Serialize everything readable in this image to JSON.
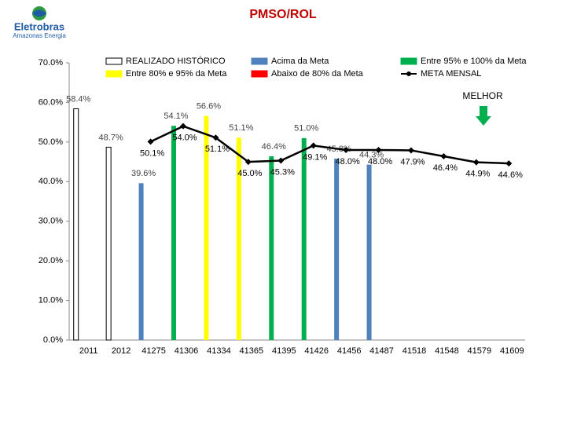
{
  "logo": {
    "name": "Eletrobras",
    "subtitle": "Amazonas Energia"
  },
  "chart_data": {
    "type": "bar",
    "title": "PMSO/ROL",
    "categories": [
      "2011",
      "2012",
      "41275",
      "41306",
      "41334",
      "41365",
      "41395",
      "41426",
      "41456",
      "41487",
      "41518",
      "41548",
      "41579",
      "41609"
    ],
    "ylim": [
      0,
      70
    ],
    "yticks": [
      {
        "value": 0,
        "label": "0.0%"
      },
      {
        "value": 10,
        "label": "10.0%"
      },
      {
        "value": 20,
        "label": "20.0%"
      },
      {
        "value": 30,
        "label": "30.0%"
      },
      {
        "value": 40,
        "label": "40.0%"
      },
      {
        "value": 50,
        "label": "50.0%"
      },
      {
        "value": 60,
        "label": "60.0%"
      },
      {
        "value": 70,
        "label": "70.0%"
      }
    ],
    "annotation": "MELHOR",
    "series": [
      {
        "name": "REALIZADO HISTÓRICO",
        "color": "#ffffff",
        "values": [
          58.4,
          48.7,
          null,
          null,
          null,
          null,
          null,
          null,
          null,
          null,
          null,
          null,
          null,
          null
        ],
        "value_labels": [
          "58.4%",
          "48.7%",
          null,
          null,
          null,
          null,
          null,
          null,
          null,
          null,
          null,
          null,
          null,
          null
        ]
      },
      {
        "name": "Entre 80% e 95% da Meta",
        "color": "#ffff00",
        "values": [
          null,
          null,
          null,
          null,
          56.6,
          51.1,
          null,
          null,
          null,
          null,
          null,
          null,
          null,
          null
        ],
        "value_labels": [
          null,
          null,
          null,
          null,
          "56.6%",
          "51.1%",
          null,
          null,
          null,
          null,
          null,
          null,
          null,
          null
        ]
      },
      {
        "name": "Acima da Meta",
        "color": "#4f81bd",
        "values": [
          null,
          null,
          39.6,
          null,
          null,
          null,
          null,
          null,
          45.8,
          44.3,
          null,
          null,
          null,
          null
        ],
        "value_labels": [
          null,
          null,
          "39.6%",
          null,
          null,
          null,
          null,
          null,
          "45.8%",
          "44.3%",
          null,
          null,
          null,
          null
        ]
      },
      {
        "name": "Abaixo de 80% da Meta",
        "color": "#ff0000",
        "values": [
          null,
          null,
          null,
          null,
          null,
          null,
          null,
          null,
          null,
          null,
          null,
          null,
          null,
          null
        ]
      },
      {
        "name": "Entre 95% e 100% da Meta",
        "color": "#00b050",
        "values": [
          null,
          null,
          null,
          54.1,
          null,
          null,
          46.4,
          51.0,
          null,
          null,
          null,
          null,
          null,
          null
        ],
        "value_labels": [
          null,
          null,
          null,
          "54.1%",
          null,
          null,
          "46.4%",
          "51.0%",
          null,
          null,
          null,
          null,
          null,
          null
        ]
      },
      {
        "name": "META MENSAL",
        "color": "#000000",
        "type": "line",
        "values": [
          null,
          null,
          50.1,
          54.0,
          51.1,
          45.0,
          45.3,
          49.1,
          48.0,
          48.0,
          47.9,
          46.4,
          44.9,
          44.6
        ],
        "value_labels": [
          null,
          null,
          "50.1%",
          "54.0%",
          "51.1%",
          "45.0%",
          "45.3%",
          "49.1%",
          "48.0%",
          "48.0%",
          "47.9%",
          "46.4%",
          "44.9%",
          "44.6%"
        ]
      }
    ]
  }
}
